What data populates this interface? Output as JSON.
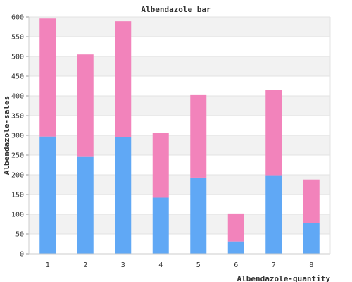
{
  "chart_data": {
    "type": "bar",
    "stacked": true,
    "title": "Albendazole bar",
    "xlabel": "Albendazole-quantity",
    "ylabel": "Albendazole-sales",
    "categories": [
      "1",
      "2",
      "3",
      "4",
      "5",
      "6",
      "7",
      "8"
    ],
    "series": [
      {
        "color": "#60a8f5",
        "values": [
          297,
          247,
          295,
          142,
          193,
          31,
          199,
          78
        ]
      },
      {
        "color": "#f283bb",
        "values": [
          299,
          258,
          294,
          165,
          209,
          71,
          216,
          110
        ]
      }
    ],
    "ylim": [
      0,
      600
    ],
    "yticks": [
      0,
      50,
      100,
      150,
      200,
      250,
      300,
      350,
      400,
      450,
      500,
      550,
      600
    ],
    "grid": true,
    "legend": "none"
  }
}
